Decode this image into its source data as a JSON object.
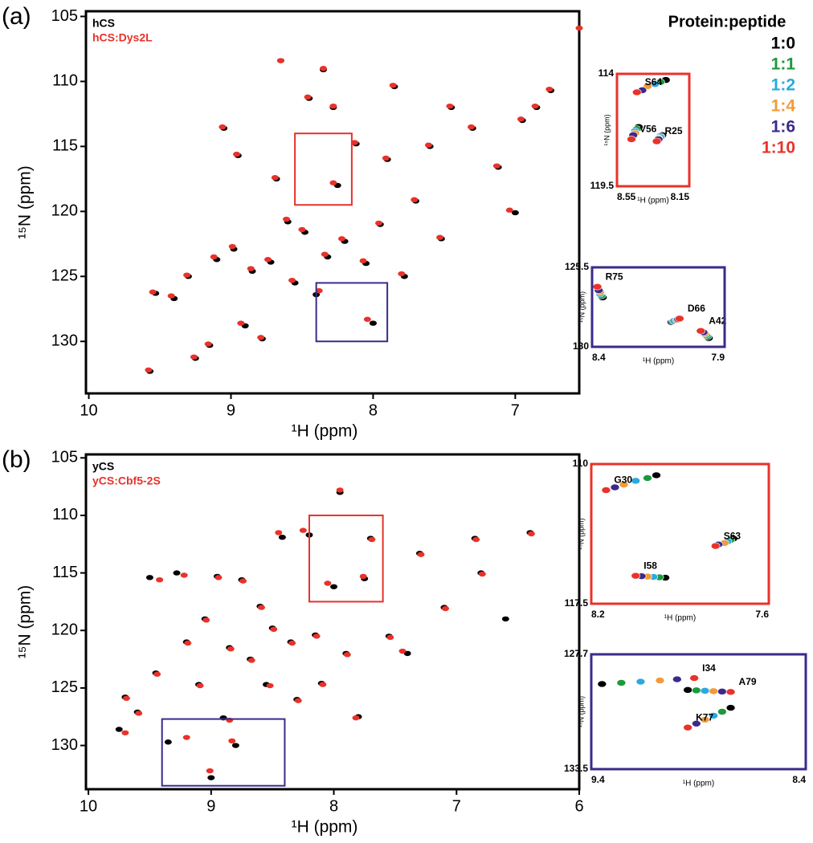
{
  "legend": {
    "title": "Protein:peptide",
    "entries": [
      {
        "label": "1:0",
        "color": "#000000"
      },
      {
        "label": "1:1",
        "color": "#1a9a3a"
      },
      {
        "label": "1:2",
        "color": "#29a9e0"
      },
      {
        "label": "1:4",
        "color": "#f29a3a"
      },
      {
        "label": "1:6",
        "color": "#3b2a8a"
      },
      {
        "label": "1:10",
        "color": "#e8322a"
      }
    ]
  },
  "chart_data": [
    {
      "type": "scatter",
      "panel": "(a)",
      "xlabel": "¹H (ppm)",
      "ylabel": "¹⁵N (ppm)",
      "xlim": [
        10.02,
        6.55
      ],
      "ylim": [
        104.6,
        134
      ],
      "xticks": [
        10,
        9,
        8,
        7
      ],
      "yticks": [
        105,
        110,
        115,
        120,
        125,
        130
      ],
      "series": [
        {
          "name": "hCS",
          "color": "#000000",
          "x": [
            9.57,
            9.53,
            9.4,
            9.3,
            9.25,
            9.15,
            9.1,
            9.05,
            8.98,
            8.95,
            8.9,
            8.85,
            8.78,
            8.72,
            8.68,
            8.65,
            8.6,
            8.55,
            8.48,
            8.45,
            8.4,
            8.35,
            8.32,
            8.28,
            8.25,
            8.2,
            8.12,
            8.05,
            8.0,
            7.95,
            7.9,
            7.85,
            7.78,
            7.7,
            7.6,
            7.52,
            7.45,
            7.3,
            7.12,
            7.0,
            6.85,
            6.75,
            6.95
          ],
          "values": [
            132.3,
            126.3,
            126.7,
            125.0,
            131.3,
            130.3,
            123.7,
            113.6,
            122.9,
            115.7,
            128.8,
            124.6,
            129.8,
            123.9,
            117.5,
            108.4,
            120.8,
            125.5,
            121.6,
            111.3,
            126.4,
            109.1,
            123.5,
            112.0,
            118.0,
            122.3,
            114.8,
            124.0,
            128.6,
            121.0,
            116.0,
            110.4,
            125.0,
            119.2,
            115.0,
            122.1,
            112.0,
            113.6,
            116.6,
            120.1,
            112.0,
            110.7,
            113.0
          ]
        },
        {
          "name": "hCS:Dys2L",
          "color": "#e8322a",
          "x": [
            9.58,
            9.55,
            9.42,
            9.31,
            9.26,
            9.16,
            9.12,
            9.06,
            8.99,
            8.96,
            8.93,
            8.86,
            8.79,
            8.74,
            8.69,
            8.65,
            8.61,
            8.57,
            8.5,
            8.46,
            8.38,
            8.35,
            8.34,
            8.28,
            8.28,
            8.22,
            8.13,
            8.07,
            8.04,
            7.96,
            7.91,
            7.86,
            7.8,
            7.71,
            7.61,
            7.53,
            7.46,
            7.31,
            7.13,
            7.04,
            6.86,
            6.76,
            6.96,
            6.55
          ],
          "values": [
            132.2,
            126.2,
            126.5,
            124.9,
            131.2,
            130.2,
            123.5,
            113.5,
            122.7,
            115.6,
            128.6,
            124.4,
            129.7,
            123.7,
            117.4,
            108.4,
            120.6,
            125.3,
            121.4,
            111.2,
            126.1,
            109.0,
            123.3,
            111.9,
            117.8,
            122.1,
            114.7,
            123.8,
            128.3,
            120.9,
            115.9,
            110.3,
            124.8,
            119.1,
            114.9,
            122.0,
            111.9,
            113.5,
            116.5,
            119.9,
            111.9,
            110.6,
            112.9,
            105.9
          ]
        }
      ]
    },
    {
      "type": "inset",
      "xlabel": "¹H (ppm)",
      "ylabel": "¹⁵N (ppm)",
      "frame_color": "#e8322a",
      "xlim": [
        8.55,
        8.15
      ],
      "ylim": [
        114,
        119.5
      ],
      "xticks": [
        8.55,
        8.15
      ],
      "yticks": [
        114,
        119.5
      ],
      "peaks": [
        {
          "label": "S64",
          "x": [
            8.28,
            8.31,
            8.34,
            8.38,
            8.41,
            8.44
          ],
          "y": [
            114.3,
            114.4,
            114.5,
            114.6,
            114.8,
            114.9
          ]
        },
        {
          "label": "V56",
          "x": [
            8.43,
            8.44,
            8.45,
            8.45,
            8.46,
            8.47
          ],
          "y": [
            116.6,
            116.7,
            116.8,
            116.9,
            117.0,
            117.2
          ]
        },
        {
          "label": "R25",
          "x": [
            8.3,
            8.31,
            8.31,
            8.32,
            8.32,
            8.33
          ],
          "y": [
            117.0,
            117.05,
            117.1,
            117.15,
            117.2,
            117.3
          ]
        }
      ]
    },
    {
      "type": "inset",
      "xlabel": "¹H (ppm)",
      "ylabel": "¹⁵N (ppm)",
      "frame_color": "#3b2a8a",
      "xlim": [
        8.4,
        7.9
      ],
      "ylim": [
        125.5,
        130
      ],
      "xticks": [
        8.4,
        7.9
      ],
      "yticks": [
        125.5,
        130
      ],
      "peaks": [
        {
          "label": "R75",
          "x": [
            8.36,
            8.365,
            8.37,
            8.37,
            8.375,
            8.38
          ],
          "y": [
            127.2,
            127.1,
            127.0,
            126.9,
            126.8,
            126.6
          ]
        },
        {
          "label": "D66",
          "x": [
            8.1,
            8.095,
            8.09,
            8.08,
            8.075,
            8.07
          ],
          "y": [
            128.6,
            128.56,
            128.52,
            128.48,
            128.44,
            128.4
          ]
        },
        {
          "label": "A42",
          "x": [
            7.96,
            7.965,
            7.97,
            7.975,
            7.98,
            7.99
          ],
          "y": [
            129.5,
            129.42,
            129.34,
            129.26,
            129.18,
            129.1
          ]
        }
      ]
    },
    {
      "type": "scatter",
      "panel": "(b)",
      "xlabel": "¹H (ppm)",
      "ylabel": "¹⁵N (ppm)",
      "xlim": [
        10.02,
        6
      ],
      "ylim": [
        104.7,
        133.8
      ],
      "xticks": [
        10,
        9,
        8,
        7,
        6
      ],
      "yticks": [
        105,
        110,
        115,
        120,
        125,
        130
      ],
      "series": [
        {
          "name": "yCS",
          "color": "#000000",
          "x": [
            9.75,
            9.7,
            9.6,
            9.5,
            9.45,
            9.35,
            9.28,
            9.2,
            9.1,
            9.05,
            9.0,
            8.95,
            8.9,
            8.85,
            8.8,
            8.75,
            8.68,
            8.6,
            8.55,
            8.5,
            8.42,
            8.35,
            8.3,
            8.2,
            8.15,
            8.1,
            8.0,
            7.95,
            7.9,
            7.8,
            7.75,
            7.7,
            7.55,
            7.4,
            7.3,
            7.1,
            6.85,
            6.8,
            6.6,
            6.4
          ],
          "values": [
            128.6,
            125.8,
            127.1,
            115.4,
            123.7,
            129.7,
            115.0,
            121.0,
            124.7,
            119.0,
            132.8,
            115.3,
            127.6,
            121.5,
            130.0,
            115.6,
            122.5,
            117.9,
            124.7,
            119.8,
            111.9,
            121.0,
            126.0,
            111.7,
            120.4,
            124.6,
            116.2,
            108.0,
            122.0,
            127.5,
            115.5,
            112.0,
            120.5,
            122.0,
            113.3,
            118.0,
            112.0,
            115.0,
            119.0,
            111.5
          ]
        },
        {
          "name": "yCS:Cbf5-2S",
          "color": "#e8322a",
          "x": [
            9.7,
            9.69,
            9.59,
            9.42,
            9.44,
            9.2,
            9.22,
            9.19,
            9.09,
            9.04,
            9.01,
            8.94,
            8.85,
            8.84,
            8.83,
            8.74,
            8.67,
            8.59,
            8.52,
            8.49,
            8.45,
            8.34,
            8.29,
            8.25,
            8.14,
            8.09,
            8.05,
            7.95,
            7.89,
            7.82,
            7.76,
            7.69,
            7.54,
            7.44,
            7.29,
            7.09,
            6.84,
            6.79,
            6.39
          ],
          "values": [
            128.9,
            125.9,
            127.2,
            115.6,
            123.8,
            129.3,
            115.2,
            121.1,
            124.8,
            119.1,
            132.2,
            115.4,
            127.8,
            121.6,
            129.6,
            115.7,
            122.6,
            118.0,
            124.8,
            119.9,
            111.5,
            121.1,
            126.1,
            111.3,
            120.5,
            124.7,
            115.9,
            107.8,
            122.1,
            127.6,
            115.3,
            112.1,
            120.6,
            121.8,
            113.4,
            118.1,
            112.1,
            115.1,
            111.6
          ]
        }
      ]
    },
    {
      "type": "inset",
      "xlabel": "¹H (ppm)",
      "ylabel": "¹⁵N (ppm)",
      "frame_color": "#e8322a",
      "xlim": [
        8.2,
        7.6
      ],
      "ylim": [
        110,
        117.5
      ],
      "xticks": [
        8.2,
        7.6
      ],
      "yticks": [
        110,
        117.5
      ],
      "peaks": [
        {
          "label": "G30",
          "x": [
            7.98,
            8.01,
            8.05,
            8.09,
            8.12,
            8.15
          ],
          "y": [
            110.6,
            110.75,
            110.9,
            111.1,
            111.25,
            111.4
          ]
        },
        {
          "label": "S63",
          "x": [
            7.72,
            7.73,
            7.74,
            7.75,
            7.77,
            7.78
          ],
          "y": [
            114.0,
            114.08,
            114.16,
            114.24,
            114.32,
            114.4
          ]
        },
        {
          "label": "I58",
          "x": [
            7.95,
            7.97,
            7.99,
            8.01,
            8.03,
            8.05
          ],
          "y": [
            116.1,
            116.08,
            116.06,
            116.04,
            116.02,
            116.0
          ]
        }
      ]
    },
    {
      "type": "inset",
      "xlabel": "¹H (ppm)",
      "ylabel": "¹⁵N (ppm)",
      "frame_color": "#3b2a8a",
      "xlim": [
        9.4,
        8.4
      ],
      "ylim": [
        127.7,
        133.5
      ],
      "xticks": [
        9.4,
        8.4
      ],
      "yticks": [
        127.7,
        133.5
      ],
      "peaks": [
        {
          "label": "I34",
          "x": [
            9.35,
            9.26,
            9.17,
            9.08,
            9.0,
            8.92
          ],
          "y": [
            129.2,
            129.14,
            129.08,
            129.02,
            128.96,
            128.9
          ]
        },
        {
          "label": "A79",
          "x": [
            8.95,
            8.91,
            8.87,
            8.83,
            8.79,
            8.75
          ],
          "y": [
            129.5,
            129.52,
            129.54,
            129.56,
            129.58,
            129.6
          ]
        },
        {
          "label": "K77",
          "x": [
            8.75,
            8.79,
            8.83,
            8.87,
            8.91,
            8.95
          ],
          "y": [
            130.4,
            130.6,
            130.8,
            131.0,
            131.2,
            131.4
          ]
        }
      ]
    }
  ]
}
